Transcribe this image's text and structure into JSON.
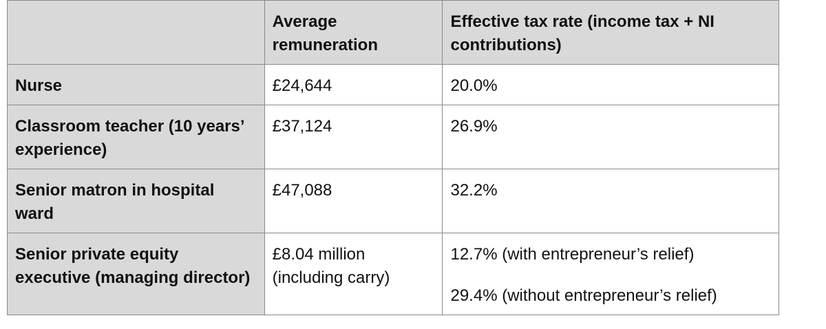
{
  "table": {
    "columns": [
      "Average remuneration",
      "Effective tax rate (income tax + NI contributions)"
    ],
    "rows": [
      [
        "Nurse",
        "£24,644",
        [
          "20.0%"
        ]
      ],
      [
        "Classroom teacher (10 years’ experience)",
        "£37,124",
        [
          "26.9%"
        ]
      ],
      [
        "Senior matron in hospital ward",
        "£47,088",
        [
          "32.2%"
        ]
      ],
      [
        "Senior private equity executive (managing director)",
        "£8.04 million (including carry)",
        [
          "12.7% (with entrepreneur’s relief)",
          "29.4% (without entrepreneur’s relief)"
        ]
      ]
    ]
  }
}
